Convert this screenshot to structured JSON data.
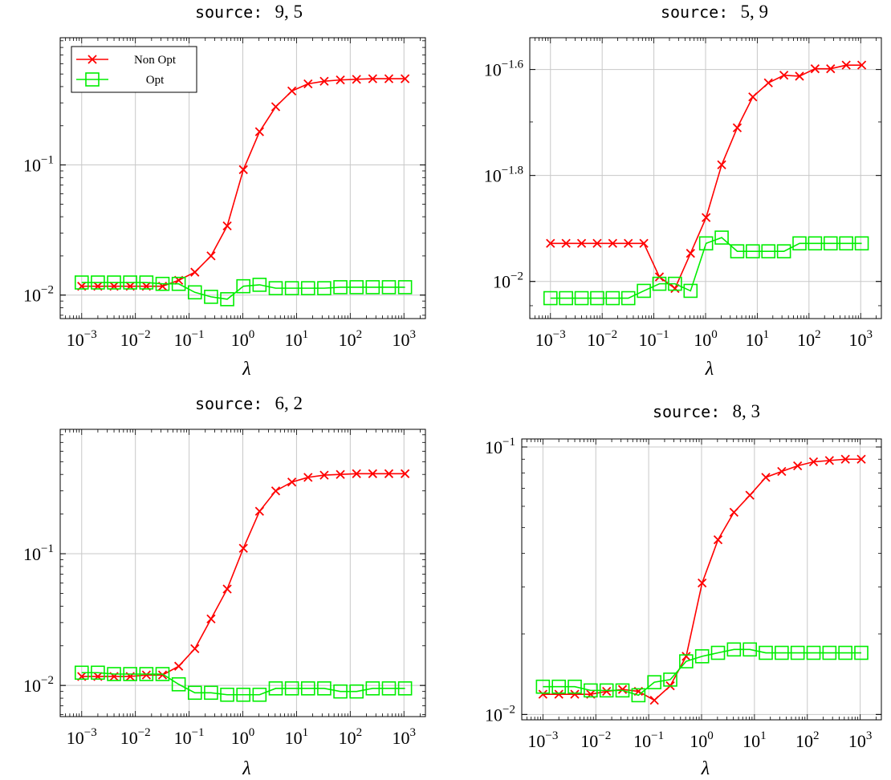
{
  "chart_data": [
    {
      "type": "line",
      "title_code": "source:",
      "title_value": "9, 5",
      "xlabel": "λ",
      "xscale": "log",
      "yscale": "log",
      "xlim": [
        0.000398,
        2512
      ],
      "ylim": [
        0.0066,
        0.95
      ],
      "x_tick_labels": [
        {
          "base": "10",
          "exp": "−3"
        },
        {
          "base": "10",
          "exp": "−2"
        },
        {
          "base": "10",
          "exp": "−1"
        },
        {
          "base": "10",
          "exp": "0"
        },
        {
          "base": "10",
          "exp": "1"
        },
        {
          "base": "10",
          "exp": "2"
        },
        {
          "base": "10",
          "exp": "3"
        }
      ],
      "y_tick_labels": [
        {
          "value": 0.01,
          "base": "10",
          "exp": "−2"
        },
        {
          "value": 0.1,
          "base": "10",
          "exp": "−1"
        }
      ],
      "grid": true,
      "legend": {
        "placement": "top-left"
      },
      "x": [
        0.001,
        0.002,
        0.004,
        0.008,
        0.016,
        0.032,
        0.064,
        0.128,
        0.256,
        0.512,
        1.024,
        2.048,
        4.096,
        8.192,
        16.384,
        32.768,
        65.536,
        131.07,
        262.14,
        524.29,
        1048.6
      ],
      "series": [
        {
          "name": "Non Opt",
          "color": "#ff0000",
          "marker": "x",
          "values": [
            0.0117,
            0.0117,
            0.0117,
            0.0117,
            0.0117,
            0.0117,
            0.013,
            0.015,
            0.02,
            0.034,
            0.092,
            0.18,
            0.28,
            0.37,
            0.42,
            0.44,
            0.45,
            0.455,
            0.46,
            0.46,
            0.46
          ]
        },
        {
          "name": "Opt",
          "color": "#00ee00",
          "marker": "square",
          "values": [
            0.0125,
            0.0125,
            0.0125,
            0.0125,
            0.0125,
            0.0122,
            0.0122,
            0.0105,
            0.0097,
            0.0093,
            0.0117,
            0.012,
            0.0113,
            0.0113,
            0.0113,
            0.0113,
            0.0115,
            0.0115,
            0.0115,
            0.0115,
            0.0115
          ]
        }
      ]
    },
    {
      "type": "line",
      "title_code": "source:",
      "title_value": "5, 9",
      "xlabel": "λ",
      "xscale": "log",
      "yscale": "log",
      "xlim": [
        0.000398,
        2512
      ],
      "ylim": [
        0.00851,
        0.02884
      ],
      "x_tick_labels": [
        {
          "base": "10",
          "exp": "−3"
        },
        {
          "base": "10",
          "exp": "−2"
        },
        {
          "base": "10",
          "exp": "−1"
        },
        {
          "base": "10",
          "exp": "0"
        },
        {
          "base": "10",
          "exp": "1"
        },
        {
          "base": "10",
          "exp": "2"
        },
        {
          "base": "10",
          "exp": "3"
        }
      ],
      "y_tick_labels": [
        {
          "value": 0.01,
          "base": "10",
          "exp": "−2"
        },
        {
          "value": 0.015849,
          "base": "10",
          "exp": "−1.8"
        },
        {
          "value": 0.025119,
          "base": "10",
          "exp": "−1.6"
        }
      ],
      "grid": true,
      "legend": null,
      "x": [
        0.001,
        0.002,
        0.004,
        0.008,
        0.016,
        0.032,
        0.064,
        0.128,
        0.256,
        0.512,
        1.024,
        2.048,
        4.096,
        8.192,
        16.384,
        32.768,
        65.536,
        131.07,
        262.14,
        524.29,
        1048.6
      ],
      "series": [
        {
          "name": "Non Opt",
          "color": "#ff0000",
          "marker": "x",
          "values": [
            0.0118,
            0.0118,
            0.0118,
            0.0118,
            0.0118,
            0.0118,
            0.0118,
            0.0102,
            0.0097,
            0.0113,
            0.0132,
            0.0166,
            0.0195,
            0.0223,
            0.0237,
            0.0245,
            0.0244,
            0.0252,
            0.0252,
            0.0256,
            0.0256
          ]
        },
        {
          "name": "Opt",
          "color": "#00ee00",
          "marker": "square",
          "values": [
            0.0093,
            0.0093,
            0.0093,
            0.0093,
            0.0093,
            0.0093,
            0.0096,
            0.0099,
            0.0099,
            0.0096,
            0.0118,
            0.0121,
            0.0114,
            0.0114,
            0.0114,
            0.0114,
            0.0118,
            0.0118,
            0.0118,
            0.0118,
            0.0118
          ]
        }
      ]
    },
    {
      "type": "line",
      "title_code": "source:",
      "title_value": "6, 2",
      "xlabel": "λ",
      "xscale": "log",
      "yscale": "log",
      "xlim": [
        0.000398,
        2512
      ],
      "ylim": [
        0.0058,
        0.88
      ],
      "x_tick_labels": [
        {
          "base": "10",
          "exp": "−3"
        },
        {
          "base": "10",
          "exp": "−2"
        },
        {
          "base": "10",
          "exp": "−1"
        },
        {
          "base": "10",
          "exp": "0"
        },
        {
          "base": "10",
          "exp": "1"
        },
        {
          "base": "10",
          "exp": "2"
        },
        {
          "base": "10",
          "exp": "3"
        }
      ],
      "y_tick_labels": [
        {
          "value": 0.01,
          "base": "10",
          "exp": "−2"
        },
        {
          "value": 0.1,
          "base": "10",
          "exp": "−1"
        }
      ],
      "grid": true,
      "legend": null,
      "x": [
        0.001,
        0.002,
        0.004,
        0.008,
        0.016,
        0.032,
        0.064,
        0.128,
        0.256,
        0.512,
        1.024,
        2.048,
        4.096,
        8.192,
        16.384,
        32.768,
        65.536,
        131.07,
        262.14,
        524.29,
        1048.6
      ],
      "series": [
        {
          "name": "Non Opt",
          "color": "#ff0000",
          "marker": "x",
          "values": [
            0.0117,
            0.0117,
            0.0117,
            0.0117,
            0.012,
            0.012,
            0.014,
            0.019,
            0.032,
            0.054,
            0.11,
            0.21,
            0.3,
            0.35,
            0.38,
            0.395,
            0.4,
            0.405,
            0.405,
            0.405,
            0.405
          ]
        },
        {
          "name": "Opt",
          "color": "#00ee00",
          "marker": "square",
          "values": [
            0.0125,
            0.0125,
            0.0122,
            0.0122,
            0.0122,
            0.0122,
            0.0102,
            0.0088,
            0.0088,
            0.0085,
            0.0085,
            0.0085,
            0.0095,
            0.0095,
            0.0095,
            0.0095,
            0.009,
            0.009,
            0.0095,
            0.0095,
            0.0095
          ]
        }
      ]
    },
    {
      "type": "line",
      "title_code": "source:",
      "title_value": "8, 3",
      "xlabel": "λ",
      "xscale": "log",
      "yscale": "log",
      "xlim": [
        0.000398,
        2512
      ],
      "ylim": [
        0.00955,
        0.10715
      ],
      "x_tick_labels": [
        {
          "base": "10",
          "exp": "−3"
        },
        {
          "base": "10",
          "exp": "−2"
        },
        {
          "base": "10",
          "exp": "−1"
        },
        {
          "base": "10",
          "exp": "0"
        },
        {
          "base": "10",
          "exp": "1"
        },
        {
          "base": "10",
          "exp": "2"
        },
        {
          "base": "10",
          "exp": "3"
        }
      ],
      "y_tick_labels": [
        {
          "value": 0.01,
          "base": "10",
          "exp": "−2"
        },
        {
          "value": 0.1,
          "base": "10",
          "exp": "−1"
        }
      ],
      "grid": true,
      "legend": null,
      "x": [
        0.001,
        0.002,
        0.004,
        0.008,
        0.016,
        0.032,
        0.064,
        0.128,
        0.256,
        0.512,
        1.024,
        2.048,
        4.096,
        8.192,
        16.384,
        32.768,
        65.536,
        131.07,
        262.14,
        524.29,
        1048.6
      ],
      "series": [
        {
          "name": "Non Opt",
          "color": "#ff0000",
          "marker": "x",
          "values": [
            0.0119,
            0.0119,
            0.0119,
            0.0119,
            0.0122,
            0.0124,
            0.0122,
            0.0113,
            0.0128,
            0.0165,
            0.031,
            0.045,
            0.057,
            0.066,
            0.077,
            0.081,
            0.085,
            0.088,
            0.089,
            0.09,
            0.09
          ]
        },
        {
          "name": "Opt",
          "color": "#00ee00",
          "marker": "square",
          "values": [
            0.0127,
            0.0127,
            0.0127,
            0.0123,
            0.0123,
            0.0123,
            0.0118,
            0.0132,
            0.0135,
            0.0158,
            0.0165,
            0.017,
            0.0175,
            0.0175,
            0.017,
            0.017,
            0.017,
            0.017,
            0.017,
            0.017,
            0.017
          ]
        }
      ]
    }
  ]
}
